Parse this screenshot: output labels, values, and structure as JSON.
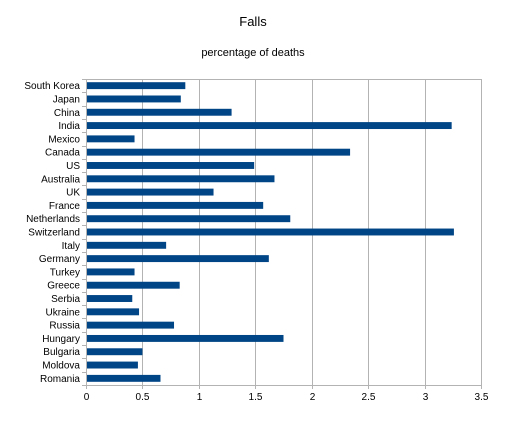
{
  "chart_data": {
    "type": "bar",
    "orientation": "horizontal",
    "title": "Falls",
    "subtitle": "percentage of deaths",
    "xlabel": "",
    "ylabel": "",
    "categories": [
      "South Korea",
      "Japan",
      "China",
      "India",
      "Mexico",
      "Canada",
      "US",
      "Australia",
      "UK",
      "France",
      "Netherlands",
      "Switzerland",
      "Italy",
      "Germany",
      "Turkey",
      "Greece",
      "Serbia",
      "Ukraine",
      "Russia",
      "Hungary",
      "Bulgaria",
      "Moldova",
      "Romania"
    ],
    "values": [
      0.88,
      0.84,
      1.29,
      3.24,
      0.43,
      2.34,
      1.49,
      1.67,
      1.13,
      1.57,
      1.81,
      3.26,
      0.71,
      1.62,
      0.43,
      0.83,
      0.41,
      0.47,
      0.78,
      1.75,
      0.5,
      0.46,
      0.66
    ],
    "xlim": [
      0,
      3.5
    ],
    "x_ticks": [
      0,
      0.5,
      1,
      1.5,
      2,
      2.5,
      3,
      3.5
    ],
    "x_tick_labels": [
      "0",
      "0.5",
      "1",
      "1.5",
      "2",
      "2.5",
      "3",
      "3.5"
    ],
    "grid": "vertical",
    "legend": "none",
    "colors": {
      "bar": "#004586",
      "grid": "#b3b3b3",
      "axis": "#b3b3b3"
    }
  }
}
